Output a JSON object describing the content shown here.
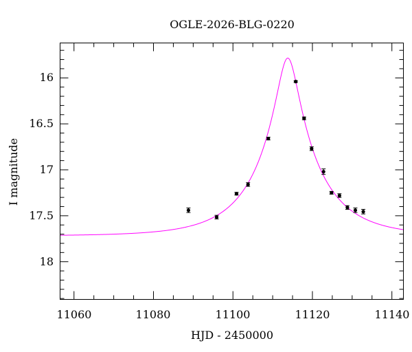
{
  "chart_data": {
    "type": "scatter",
    "title": "OGLE-2026-BLG-0220",
    "xlabel": "HJD - 2450000",
    "ylabel": "I magnitude",
    "xlim": [
      11056.5,
      11142.9
    ],
    "ylim": [
      15.62,
      18.41
    ],
    "y_inverted": true,
    "grid": false,
    "x_ticks": [
      "11060",
      "11080",
      "11100",
      "11120",
      "11140"
    ],
    "y_ticks": [
      "16",
      "16.5",
      "17",
      "17.5",
      "18"
    ],
    "points": {
      "x": [
        11088.8,
        11095.9,
        11100.9,
        11103.8,
        11108.9,
        11115.8,
        11117.9,
        11119.8,
        11122.8,
        11124.8,
        11126.8,
        11128.8,
        11130.8,
        11132.8
      ],
      "y": [
        17.44,
        17.515,
        17.26,
        17.16,
        16.66,
        16.04,
        16.44,
        16.77,
        17.02,
        17.25,
        17.28,
        17.41,
        17.44,
        17.455
      ],
      "err": [
        0.025,
        0.02,
        0.015,
        0.02,
        0.015,
        0.01,
        0.015,
        0.02,
        0.03,
        0.015,
        0.02,
        0.02,
        0.025,
        0.025
      ],
      "color": "#000000"
    },
    "model": {
      "type": "paczynski",
      "t0": 11113.8,
      "tE": 15,
      "u0": 0.17,
      "I0": 17.72,
      "color": "#ff00ff"
    }
  }
}
